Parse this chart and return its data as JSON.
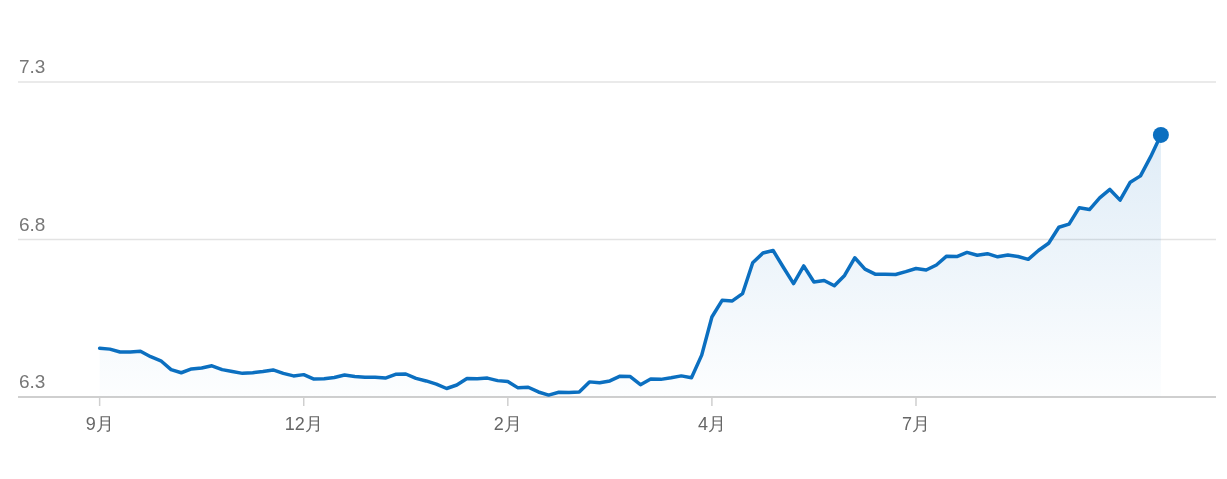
{
  "chart_data": {
    "type": "area",
    "ylim": [
      6.3,
      7.3
    ],
    "yticks": [
      6.3,
      6.8,
      7.3
    ],
    "categories": [
      "9月",
      null,
      null,
      null,
      null,
      null,
      null,
      null,
      null,
      null,
      null,
      null,
      null,
      null,
      null,
      null,
      null,
      null,
      null,
      null,
      "12月",
      null,
      null,
      null,
      null,
      null,
      null,
      null,
      null,
      null,
      null,
      null,
      null,
      null,
      null,
      null,
      null,
      null,
      null,
      null,
      "2月",
      null,
      null,
      null,
      null,
      null,
      null,
      null,
      null,
      null,
      null,
      null,
      null,
      null,
      null,
      null,
      null,
      null,
      null,
      null,
      "4月",
      null,
      null,
      null,
      null,
      null,
      null,
      null,
      null,
      null,
      null,
      null,
      null,
      null,
      null,
      null,
      null,
      null,
      null,
      null,
      "7月",
      null,
      null,
      null,
      null,
      null,
      null,
      null,
      null,
      null,
      null,
      null,
      null,
      null,
      null,
      null,
      null,
      null,
      null,
      null,
      null,
      null,
      null,
      null,
      null
    ],
    "grid": "y",
    "series": [
      {
        "color": "#0b6fc0",
        "values": [
          6.455,
          6.452,
          6.443,
          6.443,
          6.445,
          6.428,
          6.415,
          6.387,
          6.377,
          6.389,
          6.392,
          6.399,
          6.387,
          6.381,
          6.375,
          6.377,
          6.381,
          6.386,
          6.375,
          6.367,
          6.371,
          6.357,
          6.358,
          6.362,
          6.37,
          6.365,
          6.363,
          6.363,
          6.36,
          6.372,
          6.373,
          6.359,
          6.351,
          6.341,
          6.327,
          6.338,
          6.359,
          6.358,
          6.36,
          6.352,
          6.349,
          6.329,
          6.331,
          6.316,
          6.306,
          6.315,
          6.314,
          6.316,
          6.348,
          6.345,
          6.351,
          6.366,
          6.365,
          6.339,
          6.357,
          6.356,
          6.361,
          6.367,
          6.361,
          6.433,
          6.554,
          6.607,
          6.605,
          6.628,
          6.726,
          6.757,
          6.765,
          6.712,
          6.66,
          6.716,
          6.665,
          6.67,
          6.653,
          6.686,
          6.742,
          6.706,
          6.69,
          6.69,
          6.689,
          6.698,
          6.708,
          6.703,
          6.719,
          6.747,
          6.746,
          6.759,
          6.75,
          6.755,
          6.745,
          6.751,
          6.746,
          6.737,
          6.765,
          6.788,
          6.839,
          6.849,
          6.901,
          6.895,
          6.932,
          6.959,
          6.925,
          6.982,
          7.002,
          7.063,
          7.132
        ]
      },
      {
        "type": "scatter",
        "color": "#0b6fc0",
        "marker": "circle",
        "values": [
          null,
          null,
          null,
          null,
          null,
          null,
          null,
          null,
          null,
          null,
          null,
          null,
          null,
          null,
          null,
          null,
          null,
          null,
          null,
          null,
          null,
          null,
          null,
          null,
          null,
          null,
          null,
          null,
          null,
          null,
          null,
          null,
          null,
          null,
          null,
          null,
          null,
          null,
          null,
          null,
          null,
          null,
          null,
          null,
          null,
          null,
          null,
          null,
          null,
          null,
          null,
          null,
          null,
          null,
          null,
          null,
          null,
          null,
          null,
          null,
          null,
          null,
          null,
          null,
          null,
          null,
          null,
          null,
          null,
          null,
          null,
          null,
          null,
          null,
          null,
          null,
          null,
          null,
          null,
          null,
          null,
          null,
          null,
          null,
          null,
          null,
          null,
          null,
          null,
          null,
          null,
          null,
          null,
          null,
          null,
          null,
          null,
          null,
          null,
          null,
          null,
          null,
          null,
          null,
          7.132
        ]
      }
    ]
  }
}
